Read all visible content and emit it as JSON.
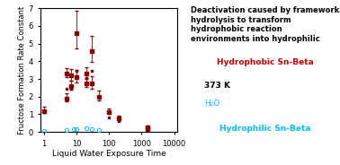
{
  "chart_data": {
    "type": "scatter",
    "xlabel": "Liquid Water Exposure Time",
    "ylabel": "Fructose Formation Rate Constant",
    "log": "x",
    "xlim": [
      0.8,
      12000
    ],
    "xticks": [
      1,
      10,
      100,
      1000,
      10000
    ],
    "ylim": [
      0,
      7
    ],
    "yticks": [
      0,
      1,
      2,
      3,
      4,
      5,
      6,
      7
    ],
    "grid": false,
    "series": [
      {
        "color": "#8B0000",
        "marker": "square",
        "x": [
          1,
          5,
          5,
          7,
          7,
          10,
          10,
          20,
          20,
          30,
          30,
          50,
          100,
          200,
          1500,
          1500
        ],
        "values": [
          1.2,
          3.3,
          1.9,
          3.2,
          2.6,
          5.6,
          3.1,
          3.3,
          2.75,
          4.6,
          2.75,
          2.0,
          1.15,
          0.75,
          0.28,
          0.18
        ],
        "yerr_low": [
          0.12,
          0.22,
          0.18,
          0.28,
          0.22,
          0.85,
          0.32,
          0.28,
          0.22,
          0.65,
          0.28,
          0.22,
          0.13,
          0.1,
          0.05,
          0.04
        ],
        "yerr_high": [
          0.22,
          0.32,
          0.28,
          0.38,
          0.32,
          1.25,
          0.42,
          0.38,
          0.32,
          0.85,
          0.38,
          0.32,
          0.18,
          0.15,
          0.09,
          0.07
        ]
      },
      {
        "color": "#8B0000",
        "marker": "square",
        "x": [
          5,
          7,
          10,
          20,
          30,
          100,
          200
        ],
        "values": [
          2.45,
          2.42,
          3.45,
          3.05,
          3.45,
          0.82,
          0.6
        ]
      },
      {
        "color": "#00BFFF",
        "marker": "circle",
        "x": [
          1,
          5,
          8,
          10,
          20,
          30,
          50
        ],
        "values": [
          0.05,
          0.1,
          0.15,
          0.14,
          0.19,
          0.17,
          0.12
        ]
      }
    ],
    "annotations": [
      {
        "text": "Deactivation caused by framework hydrolysis to transform hydrophobic reaction environments into hydrophilic",
        "color": "#000000"
      },
      {
        "text": "Hydrophobic Sn-Beta",
        "color": "#cc0000"
      },
      {
        "text": "373 K",
        "color": "#000000"
      },
      {
        "text": "H₂O",
        "color": "#00BFFF"
      },
      {
        "text": "Hydrophilic Sn-Beta",
        "color": "#00BFFF"
      }
    ]
  }
}
